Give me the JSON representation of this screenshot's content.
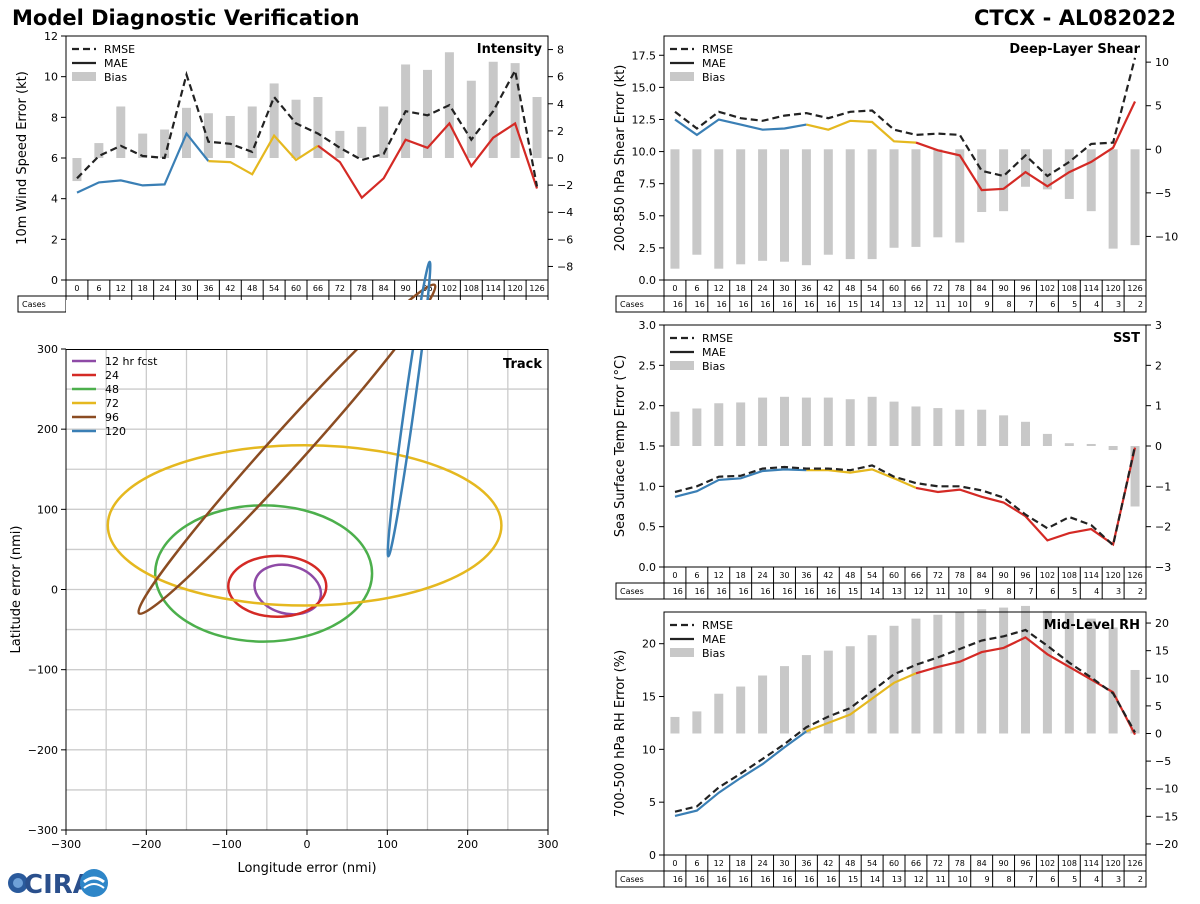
{
  "header": {
    "title": "Model Diagnostic Verification",
    "storm_id": "CTCX - AL082022"
  },
  "logo": {
    "text": "CIRA"
  },
  "colors": {
    "blue": "#3a7fb5",
    "yellow": "#e5b81f",
    "red": "#d42a25",
    "dark": "#222222",
    "bias": "#c8c8c8",
    "grid": "#cccccc"
  },
  "table": {
    "cases_label": "Cases",
    "hours": [
      "0",
      "6",
      "12",
      "18",
      "24",
      "30",
      "36",
      "42",
      "48",
      "54",
      "60",
      "66",
      "72",
      "78",
      "84",
      "90",
      "96",
      "102",
      "108",
      "114",
      "120",
      "126"
    ],
    "cases": [
      "16",
      "16",
      "16",
      "16",
      "16",
      "16",
      "16",
      "16",
      "15",
      "14",
      "13",
      "12",
      "11",
      "10",
      "9",
      "8",
      "7",
      "6",
      "5",
      "4",
      "3",
      "2"
    ]
  },
  "chart_data": [
    {
      "id": "intensity",
      "type": "line",
      "title": "Intensity",
      "ylabel": "10m Wind Speed Error (kt)",
      "ylim": [
        0,
        12
      ],
      "y2lim": [
        -9,
        9
      ],
      "yticks": [
        "0",
        "2",
        "4",
        "6",
        "8",
        "10",
        "12"
      ],
      "y2ticks": [
        "−8",
        "−6",
        "−4",
        "−2",
        "0",
        "2",
        "4",
        "6",
        "8"
      ],
      "legend": [
        "RMSE",
        "MAE",
        "Bias"
      ],
      "x": [
        0,
        6,
        12,
        18,
        24,
        30,
        36,
        42,
        48,
        54,
        60,
        66,
        72,
        78,
        84,
        90,
        96,
        102,
        108,
        114,
        120,
        126
      ],
      "rmse": [
        5.0,
        6.1,
        6.6,
        6.1,
        6.0,
        10.1,
        6.8,
        6.7,
        6.3,
        9.0,
        7.7,
        7.2,
        6.5,
        5.9,
        6.2,
        8.3,
        8.1,
        8.6,
        6.9,
        8.3,
        10.3,
        4.6
      ],
      "mae": [
        4.3,
        4.8,
        4.9,
        4.65,
        4.7,
        7.2,
        5.85,
        5.8,
        5.2,
        7.1,
        5.9,
        6.6,
        5.8,
        4.05,
        5.0,
        6.9,
        6.5,
        7.7,
        5.6,
        7.0,
        7.7,
        4.5
      ],
      "bias": [
        -1.7,
        1.1,
        3.8,
        1.8,
        2.1,
        3.7,
        3.3,
        3.1,
        3.8,
        5.5,
        4.3,
        4.5,
        2.0,
        2.3,
        3.8,
        6.9,
        6.5,
        7.8,
        5.7,
        7.1,
        7.0,
        4.5
      ]
    },
    {
      "id": "shear",
      "type": "line",
      "title": "Deep-Layer Shear",
      "ylabel": "200-850 hPa Shear Error (kt)",
      "ylim": [
        0,
        19
      ],
      "y2lim": [
        -15,
        13
      ],
      "yticks": [
        "0.0",
        "2.5",
        "5.0",
        "7.5",
        "10.0",
        "12.5",
        "15.0",
        "17.5"
      ],
      "y2ticks": [
        "−10",
        "−5",
        "0",
        "5",
        "10"
      ],
      "legend": [
        "RMSE",
        "MAE",
        "Bias"
      ],
      "x": [
        0,
        6,
        12,
        18,
        24,
        30,
        36,
        42,
        48,
        54,
        60,
        66,
        72,
        78,
        84,
        90,
        96,
        102,
        108,
        114,
        120,
        126
      ],
      "rmse": [
        13.1,
        11.8,
        13.1,
        12.6,
        12.4,
        12.8,
        13.0,
        12.6,
        13.1,
        13.2,
        11.7,
        11.3,
        11.4,
        11.3,
        8.5,
        8.1,
        9.7,
        8.1,
        9.2,
        10.6,
        10.7,
        17.3
      ],
      "mae": [
        12.5,
        11.3,
        12.5,
        12.1,
        11.7,
        11.8,
        12.1,
        11.7,
        12.4,
        12.3,
        10.8,
        10.7,
        10.1,
        9.7,
        7.0,
        7.1,
        8.4,
        7.3,
        8.4,
        9.2,
        10.3,
        13.9
      ],
      "bias": [
        -13.7,
        -12.1,
        -13.7,
        -13.2,
        -12.8,
        -12.9,
        -13.3,
        -12.1,
        -12.6,
        -12.6,
        -11.3,
        -11.2,
        -10.1,
        -10.7,
        -7.2,
        -7.1,
        -4.3,
        -4.6,
        -5.7,
        -7.1,
        -11.4,
        -11.0
      ]
    },
    {
      "id": "sst",
      "type": "line",
      "title": "SST",
      "ylabel": "Sea Surface Temp Error (°C)",
      "ylim": [
        0,
        3
      ],
      "y2lim": [
        -3,
        3
      ],
      "yticks": [
        "0.0",
        "0.5",
        "1.0",
        "1.5",
        "2.0",
        "2.5",
        "3.0"
      ],
      "y2ticks": [
        "−3",
        "−2",
        "−1",
        "0",
        "1",
        "2",
        "3"
      ],
      "legend": [
        "RMSE",
        "MAE",
        "Bias"
      ],
      "x": [
        0,
        6,
        12,
        18,
        24,
        30,
        36,
        42,
        48,
        54,
        60,
        66,
        72,
        78,
        84,
        90,
        96,
        102,
        108,
        114,
        120,
        126
      ],
      "rmse": [
        0.93,
        1.0,
        1.12,
        1.13,
        1.22,
        1.24,
        1.22,
        1.22,
        1.2,
        1.26,
        1.12,
        1.04,
        1.0,
        1.0,
        0.95,
        0.86,
        0.65,
        0.48,
        0.62,
        0.52,
        0.27,
        1.5
      ],
      "mae": [
        0.87,
        0.94,
        1.08,
        1.1,
        1.19,
        1.21,
        1.2,
        1.2,
        1.17,
        1.21,
        1.1,
        0.98,
        0.93,
        0.96,
        0.87,
        0.8,
        0.63,
        0.33,
        0.42,
        0.47,
        0.28,
        1.48
      ],
      "bias": [
        0.85,
        0.93,
        1.06,
        1.08,
        1.2,
        1.22,
        1.2,
        1.2,
        1.16,
        1.22,
        1.1,
        0.98,
        0.94,
        0.9,
        0.9,
        0.76,
        0.6,
        0.3,
        0.07,
        0.05,
        -0.1,
        -1.5
      ]
    },
    {
      "id": "rh",
      "type": "line",
      "title": "Mid-Level RH",
      "ylabel": "700-500 hPa RH Error (%)",
      "ylim": [
        0,
        23
      ],
      "y2lim": [
        -22,
        22
      ],
      "yticks": [
        "0",
        "5",
        "10",
        "15",
        "20"
      ],
      "y2ticks": [
        "−20",
        "−15",
        "−10",
        "−5",
        "0",
        "5",
        "10",
        "15",
        "20"
      ],
      "legend": [
        "RMSE",
        "MAE",
        "Bias"
      ],
      "x": [
        0,
        6,
        12,
        18,
        24,
        30,
        36,
        42,
        48,
        54,
        60,
        66,
        72,
        78,
        84,
        90,
        96,
        102,
        108,
        114,
        120,
        126
      ],
      "rmse": [
        4.1,
        4.6,
        6.4,
        7.7,
        9.1,
        10.5,
        12.1,
        13.1,
        13.9,
        15.5,
        17.1,
        18.0,
        18.7,
        19.5,
        20.3,
        20.7,
        21.3,
        19.8,
        18.2,
        16.8,
        15.3,
        11.6
      ],
      "mae": [
        3.7,
        4.2,
        5.9,
        7.3,
        8.6,
        10.2,
        11.7,
        12.5,
        13.3,
        14.8,
        16.3,
        17.2,
        17.8,
        18.3,
        19.2,
        19.6,
        20.6,
        19.0,
        17.8,
        16.6,
        15.4,
        11.4
      ],
      "bias": [
        3.0,
        4.0,
        7.2,
        8.5,
        10.5,
        12.2,
        14.2,
        15.0,
        15.8,
        17.8,
        19.5,
        20.8,
        21.5,
        22.0,
        22.5,
        22.8,
        23.1,
        22.2,
        21.8,
        20.8,
        19.2,
        11.5
      ]
    },
    {
      "id": "track",
      "type": "scatter",
      "title": "Track",
      "xlabel": "Longitude error (nmi)",
      "ylabel": "Latitude error (nmi)",
      "xlim": [
        -300,
        300
      ],
      "ylim": [
        -300,
        300
      ],
      "xticks": [
        "−300",
        "−200",
        "−100",
        "0",
        "100",
        "200",
        "300"
      ],
      "yticks": [
        "−300",
        "−200",
        "−100",
        "0",
        "100",
        "200",
        "300"
      ],
      "ellipses": [
        {
          "label": "12 hr fcst",
          "color": "#8e4aa6",
          "cx": -24,
          "cy": 0,
          "rx": 42,
          "ry": 30,
          "angle": 15
        },
        {
          "label": "24",
          "color": "#d42a25",
          "cx": -37,
          "cy": 4,
          "rx": 61,
          "ry": 38,
          "angle": 0
        },
        {
          "label": "48",
          "color": "#4caf4c",
          "cx": -54,
          "cy": 20,
          "rx": 135,
          "ry": 85,
          "angle": 0
        },
        {
          "label": "72",
          "color": "#e5b81f",
          "cx": -3,
          "cy": 80,
          "rx": 245,
          "ry": 100,
          "angle": 0
        },
        {
          "label": "96",
          "color": "#8b4c22",
          "cx": -25,
          "cy": 175,
          "rx": 275,
          "ry": 22,
          "angle": -48
        },
        {
          "label": "120",
          "color": "#3a7fb5",
          "cx": 127,
          "cy": 225,
          "rx": 185,
          "ry": 6,
          "angle": -82
        }
      ]
    }
  ]
}
